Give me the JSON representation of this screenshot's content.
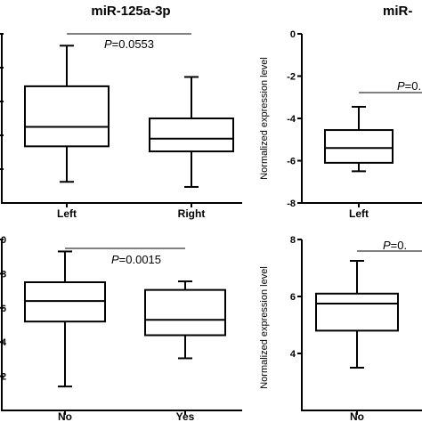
{
  "chart_data": [
    {
      "type": "box",
      "title": "miR-125a-3p",
      "ylabel": "",
      "categories": [
        "Left",
        "Right"
      ],
      "annotation": {
        "p_label": "P",
        "p_value": "=0.0553"
      },
      "boxes": [
        {
          "category": "Left",
          "min": 1.25,
          "q1": 3.35,
          "median": 4.5,
          "q3": 6.9,
          "max": 9.3
        },
        {
          "category": "Right",
          "min": 0.95,
          "q1": 3.05,
          "median": 3.8,
          "q3": 5.0,
          "max": 7.45
        }
      ]
    },
    {
      "type": "box",
      "title": "miR-",
      "ylabel": "Normalized expression level",
      "ylim": [
        -8,
        0
      ],
      "yticks": [
        "0",
        "-2",
        "-4",
        "-6",
        "-8"
      ],
      "categories": [
        "Left"
      ],
      "annotation": {
        "p_label": "P",
        "p_value": "=0."
      },
      "boxes": [
        {
          "category": "Left",
          "min": -6.5,
          "q1": -6.1,
          "median": -5.4,
          "q3": -4.55,
          "max": -3.45
        }
      ]
    },
    {
      "type": "box",
      "title": "",
      "ylabel": "",
      "ylim": [
        0,
        10
      ],
      "yticks": [
        "0",
        "8",
        "6",
        "4",
        "2"
      ],
      "categories": [
        "No",
        "Yes"
      ],
      "annotation": {
        "p_label": "P",
        "p_value": "=0.0015"
      },
      "boxes": [
        {
          "category": "No",
          "min": 1.4,
          "q1": 5.2,
          "median": 6.4,
          "q3": 7.5,
          "max": 9.3
        },
        {
          "category": "Yes",
          "min": 3.05,
          "q1": 4.4,
          "median": 5.3,
          "q3": 7.05,
          "max": 7.55
        }
      ]
    },
    {
      "type": "box",
      "title": "",
      "ylabel": "Normalized expression level",
      "ylim": [
        0,
        8
      ],
      "yticks": [
        "8",
        "6",
        "4"
      ],
      "categories": [
        "No"
      ],
      "annotation": {
        "p_label": "P",
        "p_value": "=0."
      },
      "boxes": [
        {
          "category": "No",
          "min": 3.5,
          "q1": 4.8,
          "median": 5.75,
          "q3": 6.1,
          "max": 7.25
        }
      ]
    }
  ]
}
